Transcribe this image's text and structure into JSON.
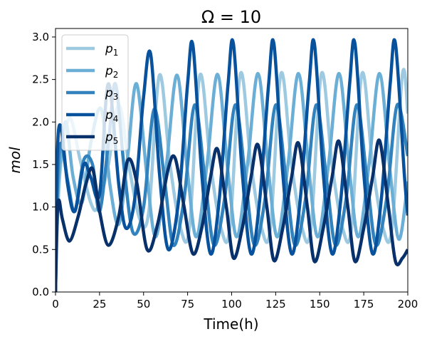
{
  "chart_data": {
    "type": "line",
    "title": "Ω = 10",
    "xlabel": "Time(h)",
    "ylabel": "mol",
    "xlim": [
      0,
      200
    ],
    "ylim": [
      0,
      3.1
    ],
    "xticks": [
      0,
      25,
      50,
      75,
      100,
      125,
      150,
      175,
      200
    ],
    "xtick_labels": [
      "0",
      "25",
      "50",
      "75",
      "100",
      "125",
      "150",
      "175",
      "200"
    ],
    "yticks": [
      0.0,
      0.5,
      1.0,
      1.5,
      2.0,
      2.5,
      3.0
    ],
    "ytick_labels": [
      "0.0",
      "0.5",
      "1.0",
      "1.5",
      "2.0",
      "2.5",
      "3.0"
    ],
    "grid": false,
    "legend_position": "top-left",
    "period_h": 23.3,
    "series": [
      {
        "name": "p",
        "index": "1",
        "color": "#9ecae1",
        "points": [
          [
            0,
            0
          ],
          [
            1,
            0.8
          ],
          [
            3,
            1.5
          ],
          [
            8,
            2.05
          ],
          [
            14,
            1.55
          ],
          [
            20,
            1.05
          ],
          [
            24,
            1.0
          ],
          [
            30,
            1.5
          ],
          [
            36,
            2.2
          ],
          [
            42,
            1.45
          ],
          [
            48,
            0.85
          ],
          [
            53,
            0.95
          ],
          [
            59,
            2.55
          ],
          [
            65,
            1.5
          ],
          [
            71,
            0.75
          ],
          [
            76,
            0.75
          ],
          [
            82,
            2.55
          ],
          [
            88,
            1.5
          ],
          [
            94,
            0.75
          ],
          [
            99,
            0.75
          ],
          [
            105,
            2.57
          ],
          [
            111,
            1.5
          ],
          [
            117,
            0.75
          ],
          [
            122,
            0.75
          ],
          [
            128,
            2.57
          ],
          [
            134,
            1.5
          ],
          [
            140,
            0.75
          ],
          [
            145,
            0.75
          ],
          [
            151,
            2.57
          ],
          [
            157,
            1.5
          ],
          [
            163,
            0.75
          ],
          [
            168,
            0.75
          ],
          [
            174,
            2.57
          ],
          [
            180,
            1.5
          ],
          [
            186,
            0.75
          ],
          [
            191,
            0.75
          ],
          [
            197,
            2.57
          ],
          [
            200,
            2.1
          ]
        ]
      },
      {
        "name": "p",
        "index": "2",
        "color": "#6baed6",
        "points": [
          [
            0,
            0
          ],
          [
            1,
            1.0
          ],
          [
            3,
            1.6
          ],
          [
            6,
            2.0
          ],
          [
            10,
            1.35
          ],
          [
            15,
            1.05
          ],
          [
            20,
            1.75
          ],
          [
            26,
            2.15
          ],
          [
            31,
            1.25
          ],
          [
            36,
            0.8
          ],
          [
            41,
            1.6
          ],
          [
            46,
            2.45
          ],
          [
            52,
            1.35
          ],
          [
            57,
            0.65
          ],
          [
            63,
            1.5
          ],
          [
            69,
            2.55
          ],
          [
            75,
            1.4
          ],
          [
            80,
            0.65
          ],
          [
            86,
            1.5
          ],
          [
            92,
            2.56
          ],
          [
            98,
            1.4
          ],
          [
            103,
            0.65
          ],
          [
            109,
            1.5
          ],
          [
            115,
            2.57
          ],
          [
            121,
            1.4
          ],
          [
            126,
            0.65
          ],
          [
            132,
            1.5
          ],
          [
            138,
            2.57
          ],
          [
            144,
            1.4
          ],
          [
            149,
            0.65
          ],
          [
            155,
            1.5
          ],
          [
            161,
            2.57
          ],
          [
            167,
            1.4
          ],
          [
            172,
            0.65
          ],
          [
            178,
            1.5
          ],
          [
            184,
            2.57
          ],
          [
            190,
            1.4
          ],
          [
            195,
            0.62
          ],
          [
            200,
            1.3
          ]
        ]
      },
      {
        "name": "p",
        "index": "3",
        "color": "#3182bd",
        "points": [
          [
            0,
            0
          ],
          [
            1,
            1.2
          ],
          [
            3,
            1.75
          ],
          [
            7,
            1.3
          ],
          [
            11,
            0.95
          ],
          [
            16,
            1.55
          ],
          [
            21,
            1.5
          ],
          [
            25,
            0.95
          ],
          [
            30,
            1.75
          ],
          [
            34,
            2.45
          ],
          [
            39,
            1.45
          ],
          [
            44,
            0.7
          ],
          [
            50,
            1.0
          ],
          [
            56,
            2.15
          ],
          [
            62,
            1.3
          ],
          [
            67,
            0.55
          ],
          [
            73,
            1.1
          ],
          [
            79,
            2.2
          ],
          [
            85,
            1.3
          ],
          [
            90,
            0.55
          ],
          [
            96,
            1.1
          ],
          [
            102,
            2.2
          ],
          [
            108,
            1.3
          ],
          [
            113,
            0.55
          ],
          [
            119,
            1.1
          ],
          [
            125,
            2.2
          ],
          [
            131,
            1.3
          ],
          [
            136,
            0.55
          ],
          [
            142,
            1.1
          ],
          [
            148,
            2.2
          ],
          [
            154,
            1.3
          ],
          [
            159,
            0.55
          ],
          [
            165,
            1.1
          ],
          [
            171,
            2.2
          ],
          [
            177,
            1.3
          ],
          [
            182,
            0.55
          ],
          [
            188,
            1.1
          ],
          [
            194,
            2.2
          ],
          [
            200,
            1.6
          ]
        ]
      },
      {
        "name": "p",
        "index": "4",
        "color": "#08519c",
        "points": [
          [
            0,
            0
          ],
          [
            1,
            1.6
          ],
          [
            3,
            1.95
          ],
          [
            7,
            1.25
          ],
          [
            11,
            0.95
          ],
          [
            16,
            1.5
          ],
          [
            20,
            1.35
          ],
          [
            25,
            1.15
          ],
          [
            30,
            2.45
          ],
          [
            36,
            1.25
          ],
          [
            40,
            0.75
          ],
          [
            45,
            1.1
          ],
          [
            50,
            2.3
          ],
          [
            54,
            2.8
          ],
          [
            59,
            1.4
          ],
          [
            64,
            0.5
          ],
          [
            70,
            1.1
          ],
          [
            75,
            2.45
          ],
          [
            78,
            2.9
          ],
          [
            83,
            1.4
          ],
          [
            88,
            0.45
          ],
          [
            93,
            1.1
          ],
          [
            98,
            2.45
          ],
          [
            101,
            2.92
          ],
          [
            106,
            1.4
          ],
          [
            111,
            0.45
          ],
          [
            116,
            1.1
          ],
          [
            121,
            2.45
          ],
          [
            124,
            2.92
          ],
          [
            129,
            1.4
          ],
          [
            134,
            0.45
          ],
          [
            139,
            1.1
          ],
          [
            144,
            2.45
          ],
          [
            147,
            2.92
          ],
          [
            152,
            1.4
          ],
          [
            157,
            0.45
          ],
          [
            162,
            1.1
          ],
          [
            167,
            2.45
          ],
          [
            170,
            2.92
          ],
          [
            175,
            1.4
          ],
          [
            180,
            0.45
          ],
          [
            185,
            1.1
          ],
          [
            190,
            2.45
          ],
          [
            193,
            2.92
          ],
          [
            198,
            1.4
          ],
          [
            200,
            0.9
          ]
        ]
      },
      {
        "name": "p",
        "index": "5",
        "color": "#08306b",
        "points": [
          [
            0,
            0
          ],
          [
            1,
            0.9
          ],
          [
            2,
            1.08
          ],
          [
            4,
            0.85
          ],
          [
            8,
            0.6
          ],
          [
            13,
            0.9
          ],
          [
            17,
            1.25
          ],
          [
            21,
            1.45
          ],
          [
            25,
            0.95
          ],
          [
            30,
            0.55
          ],
          [
            36,
            0.9
          ],
          [
            41,
            1.55
          ],
          [
            46,
            1.3
          ],
          [
            52,
            0.5
          ],
          [
            58,
            0.8
          ],
          [
            64,
            1.45
          ],
          [
            68,
            1.57
          ],
          [
            73,
            1.0
          ],
          [
            78,
            0.45
          ],
          [
            83,
            0.75
          ],
          [
            88,
            1.35
          ],
          [
            92,
            1.68
          ],
          [
            97,
            1.0
          ],
          [
            101,
            0.4
          ],
          [
            106,
            0.75
          ],
          [
            111,
            1.35
          ],
          [
            115,
            1.73
          ],
          [
            120,
            1.0
          ],
          [
            124,
            0.37
          ],
          [
            129,
            0.75
          ],
          [
            134,
            1.35
          ],
          [
            138,
            1.75
          ],
          [
            143,
            1.0
          ],
          [
            147,
            0.36
          ],
          [
            152,
            0.75
          ],
          [
            157,
            1.35
          ],
          [
            161,
            1.77
          ],
          [
            166,
            1.0
          ],
          [
            170,
            0.36
          ],
          [
            175,
            0.75
          ],
          [
            180,
            1.35
          ],
          [
            184,
            1.78
          ],
          [
            189,
            1.0
          ],
          [
            193,
            0.36
          ],
          [
            197,
            0.4
          ],
          [
            200,
            0.5
          ]
        ]
      }
    ]
  }
}
